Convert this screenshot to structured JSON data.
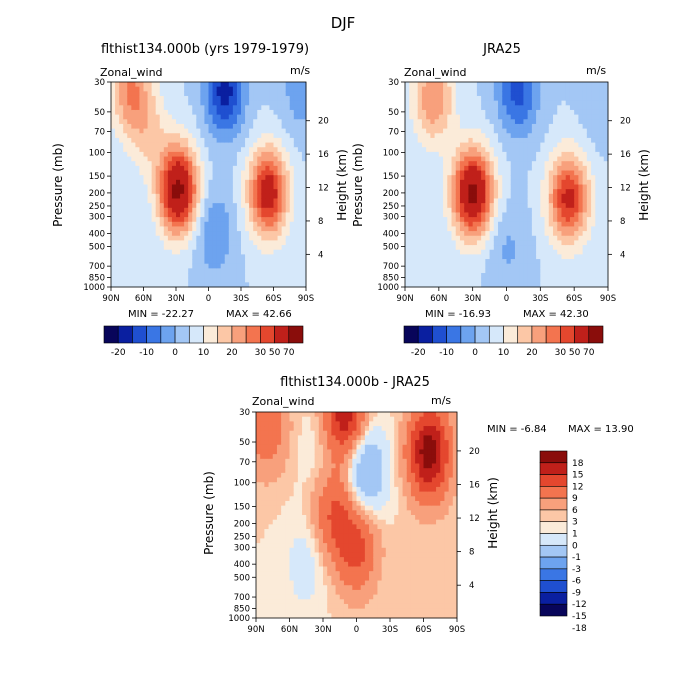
{
  "figure": {
    "title": "DJF"
  },
  "colors": {
    "full_palette": [
      "#08055a",
      "#0a1fa0",
      "#1f4fd0",
      "#3a76e4",
      "#6da3ef",
      "#a3c7f5",
      "#d6e8fa",
      "#fbebd9",
      "#fcc7a6",
      "#f8a07c",
      "#f3744f",
      "#e4472e",
      "#c0201a",
      "#8a0d0b"
    ],
    "diff_palette": [
      "#08055a",
      "#0a1fa0",
      "#1f4fd0",
      "#3a76e4",
      "#6da3ef",
      "#a3c7f5",
      "#d6e8fa",
      "#fbebd9",
      "#fcc7a6",
      "#f8a07c",
      "#f3744f",
      "#e4472e",
      "#c0201a",
      "#8a0d0b"
    ]
  },
  "chart_data": [
    {
      "type": "heatmap",
      "id": "model",
      "title": "flthist134.000b (yrs 1979-1979)",
      "variable": "Zonal_wind",
      "units": "m/s",
      "xlabel": "",
      "ylabel": "Pressure (mb)",
      "ylabel_right": "Height (km)",
      "x_ticks": [
        "90N",
        "60N",
        "30N",
        "0",
        "30S",
        "60S",
        "90S"
      ],
      "y_ticks": [
        "30",
        "50",
        "70",
        "100",
        "150",
        "200",
        "250",
        "300",
        "400",
        "500",
        "700",
        "850",
        "1000"
      ],
      "y_ticks_right": [
        "20",
        "16",
        "12",
        "8",
        "4"
      ],
      "min_label": "MIN = -22.27",
      "max_label": "MAX = 42.66",
      "min": -22.27,
      "max": 42.66,
      "features": [
        {
          "lat": 28,
          "p": 190,
          "value": 42.66,
          "kind": "max"
        },
        {
          "lat": -55,
          "p": 200,
          "value": 35
        },
        {
          "lat": 72,
          "p": 35,
          "value": 20
        },
        {
          "lat": 55,
          "p": 70,
          "value": 10
        },
        {
          "lat": -15,
          "p": 35,
          "value": -22.27,
          "kind": "min"
        },
        {
          "lat": -5,
          "p": 400,
          "value": -10
        },
        {
          "lat": -85,
          "p": 35,
          "value": -8
        }
      ],
      "colorbar": {
        "labels": [
          "-20",
          "-10",
          "0",
          "10",
          "20",
          "30",
          "50",
          "70"
        ],
        "levels": [
          -30,
          -20,
          -15,
          -10,
          -5,
          0,
          5,
          10,
          15,
          20,
          25,
          30,
          40,
          50,
          70
        ]
      }
    },
    {
      "type": "heatmap",
      "id": "obs",
      "title": "JRA25",
      "variable": "Zonal_wind",
      "units": "m/s",
      "xlabel": "",
      "ylabel": "Pressure (mb)",
      "ylabel_right": "Height (km)",
      "x_ticks": [
        "90N",
        "60N",
        "30N",
        "0",
        "30S",
        "60S",
        "90S"
      ],
      "y_ticks": [
        "30",
        "50",
        "70",
        "100",
        "150",
        "200",
        "250",
        "300",
        "400",
        "500",
        "700",
        "850",
        "1000"
      ],
      "y_ticks_right": [
        "20",
        "16",
        "12",
        "8",
        "4"
      ],
      "min_label": "MIN = -16.93",
      "max_label": "MAX = 42.30",
      "min": -16.93,
      "max": 42.3,
      "features": [
        {
          "lat": 30,
          "p": 200,
          "value": 42.3,
          "kind": "max"
        },
        {
          "lat": -55,
          "p": 220,
          "value": 32
        },
        {
          "lat": 65,
          "p": 40,
          "value": 20
        },
        {
          "lat": -10,
          "p": 35,
          "value": -16.93,
          "kind": "min"
        },
        {
          "lat": 0,
          "p": 500,
          "value": -6
        },
        {
          "lat": -85,
          "p": 40,
          "value": -5
        }
      ],
      "colorbar": {
        "labels": [
          "-20",
          "-10",
          "0",
          "10",
          "20",
          "30",
          "50",
          "70"
        ],
        "levels": [
          -30,
          -20,
          -15,
          -10,
          -5,
          0,
          5,
          10,
          15,
          20,
          25,
          30,
          40,
          50,
          70
        ]
      }
    },
    {
      "type": "heatmap",
      "id": "diff",
      "title": "flthist134.000b - JRA25",
      "variable": "Zonal_wind",
      "units": "m/s",
      "xlabel": "",
      "ylabel": "Pressure (mb)",
      "ylabel_right": "Height (km)",
      "x_ticks": [
        "90N",
        "60N",
        "30N",
        "0",
        "30S",
        "60S",
        "90S"
      ],
      "y_ticks": [
        "30",
        "50",
        "70",
        "100",
        "150",
        "200",
        "250",
        "300",
        "400",
        "500",
        "700",
        "850",
        "1000"
      ],
      "y_ticks_right": [
        "20",
        "16",
        "12",
        "8",
        "4"
      ],
      "min_label": "MIN =   -6.84",
      "max_label": "MAX =  13.90",
      "min": -6.84,
      "max": 13.9,
      "features": [
        {
          "lat": -65,
          "p": 60,
          "value": 13.9,
          "kind": "max"
        },
        {
          "lat": 10,
          "p": 32,
          "value": 11
        },
        {
          "lat": 20,
          "p": 170,
          "value": 6
        },
        {
          "lat": 0,
          "p": 300,
          "value": 7
        },
        {
          "lat": 80,
          "p": 40,
          "value": 5
        },
        {
          "lat": 35,
          "p": 60,
          "value": -1
        },
        {
          "lat": -8,
          "p": 80,
          "value": -6.84,
          "kind": "min"
        },
        {
          "lat": 45,
          "p": 400,
          "value": -2
        }
      ],
      "colorbar": {
        "labels": [
          "18",
          "15",
          "12",
          "9",
          "6",
          "3",
          "1",
          "0",
          "-1",
          "-3",
          "-6",
          "-9",
          "-12",
          "-15",
          "-18"
        ],
        "levels": [
          -18,
          -15,
          -12,
          -9,
          -6,
          -3,
          -1,
          0,
          1,
          3,
          6,
          9,
          12,
          15,
          18
        ]
      }
    }
  ]
}
